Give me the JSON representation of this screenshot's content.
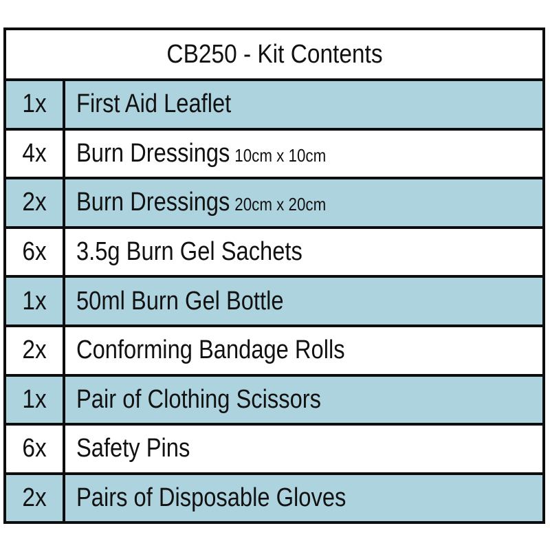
{
  "title": "CB250 - Kit Contents",
  "colors": {
    "band": "#add3df",
    "border": "#0d0d0d"
  },
  "rows": [
    {
      "qty": "1x",
      "name": "First Aid Leaflet",
      "size": ""
    },
    {
      "qty": "4x",
      "name": "Burn Dressings",
      "size": "10cm x 10cm"
    },
    {
      "qty": "2x",
      "name": "Burn Dressings",
      "size": "20cm x 20cm"
    },
    {
      "qty": "6x",
      "name": "3.5g Burn Gel Sachets",
      "size": ""
    },
    {
      "qty": "1x",
      "name": "50ml Burn Gel Bottle",
      "size": ""
    },
    {
      "qty": "2x",
      "name": "Conforming Bandage Rolls",
      "size": ""
    },
    {
      "qty": "1x",
      "name": "Pair of Clothing Scissors",
      "size": ""
    },
    {
      "qty": "6x",
      "name": "Safety Pins",
      "size": ""
    },
    {
      "qty": "2x",
      "name": "Pairs of Disposable Gloves",
      "size": ""
    }
  ]
}
